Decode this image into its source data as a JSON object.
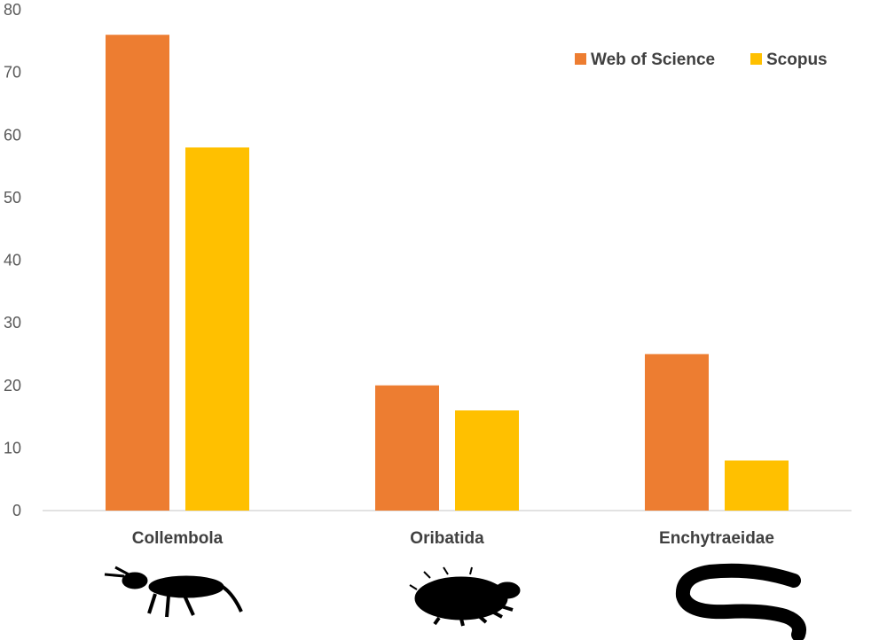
{
  "chart_data": {
    "type": "bar",
    "title": "",
    "xlabel": "",
    "ylabel": "",
    "categories": [
      "Collembola",
      "Oribatida",
      "Enchytraeidae"
    ],
    "series": [
      {
        "name": "Web of Science",
        "color": "#ED7D31",
        "values": [
          76,
          20,
          25
        ]
      },
      {
        "name": "Scopus",
        "color": "#FFC000",
        "values": [
          58,
          16,
          8
        ]
      }
    ],
    "ylim": [
      0,
      80
    ],
    "yticks": [
      "0",
      "10",
      "20",
      "30",
      "40",
      "50",
      "60",
      "70",
      "80"
    ],
    "grid": false,
    "legend_position": "top-right",
    "category_icons": [
      "springtail-silhouette-icon",
      "mite-silhouette-icon",
      "worm-silhouette-icon"
    ]
  }
}
